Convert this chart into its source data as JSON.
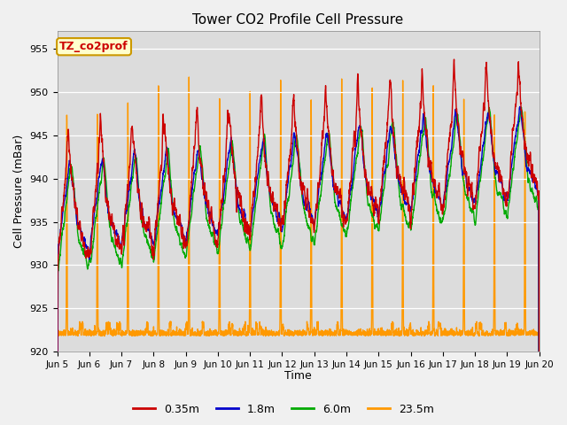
{
  "title": "Tower CO2 Profile Cell Pressure",
  "xlabel": "Time",
  "ylabel": "Cell Pressure (mBar)",
  "ylim": [
    920,
    957
  ],
  "yticks": [
    920,
    925,
    930,
    935,
    940,
    945,
    950,
    955
  ],
  "plot_bg_color": "#dcdcdc",
  "fig_bg_color": "#f0f0f0",
  "legend_labels": [
    "0.35m",
    "1.8m",
    "6.0m",
    "23.5m"
  ],
  "legend_colors": [
    "#cc0000",
    "#0000cc",
    "#00aa00",
    "#ff9900"
  ],
  "annotation_text": "TZ_co2prof",
  "annotation_color": "#cc0000",
  "annotation_bg": "#ffffcc",
  "annotation_border": "#cc9900",
  "line_width": 1.0,
  "figsize": [
    6.4,
    4.8
  ],
  "dpi": 100
}
